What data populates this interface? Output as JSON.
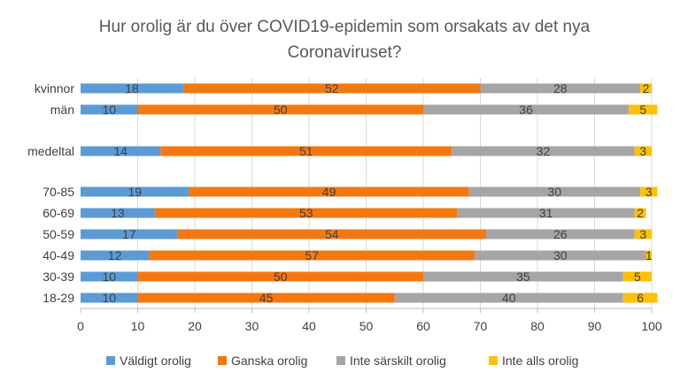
{
  "chart_data": {
    "type": "bar",
    "orientation": "horizontal",
    "stacked": true,
    "title": "Hur orolig är du över COVID19-epidemin som orsakats av det nya Coronaviruset?",
    "title_lines": [
      "Hur orolig är du över COVID19-epidemin som orsakats av det nya",
      "Coronaviruset?"
    ],
    "categories": [
      "kvinnor",
      "män",
      "medeltal",
      "70-85",
      "60-69",
      "50-59",
      "40-49",
      "30-39",
      "18-29"
    ],
    "series": [
      {
        "name": "Väldigt orolig",
        "color": "#5B9BD5",
        "values": [
          18,
          10,
          14,
          19,
          13,
          17,
          12,
          10,
          10
        ]
      },
      {
        "name": "Ganska orolig",
        "color": "#F5780F",
        "values": [
          52,
          50,
          51,
          49,
          53,
          54,
          57,
          50,
          45
        ]
      },
      {
        "name": "Inte särskilt orolig",
        "color": "#A5A5A5",
        "values": [
          28,
          36,
          32,
          30,
          31,
          26,
          30,
          35,
          40
        ]
      },
      {
        "name": "Inte alls orolig",
        "color": "#FFC000",
        "values": [
          2,
          5,
          3,
          3,
          2,
          3,
          1,
          5,
          6
        ]
      }
    ],
    "xlim": [
      0,
      100
    ],
    "xticks": [
      0,
      10,
      20,
      30,
      40,
      50,
      60,
      70,
      80,
      90,
      100
    ],
    "legend_position": "bottom"
  }
}
